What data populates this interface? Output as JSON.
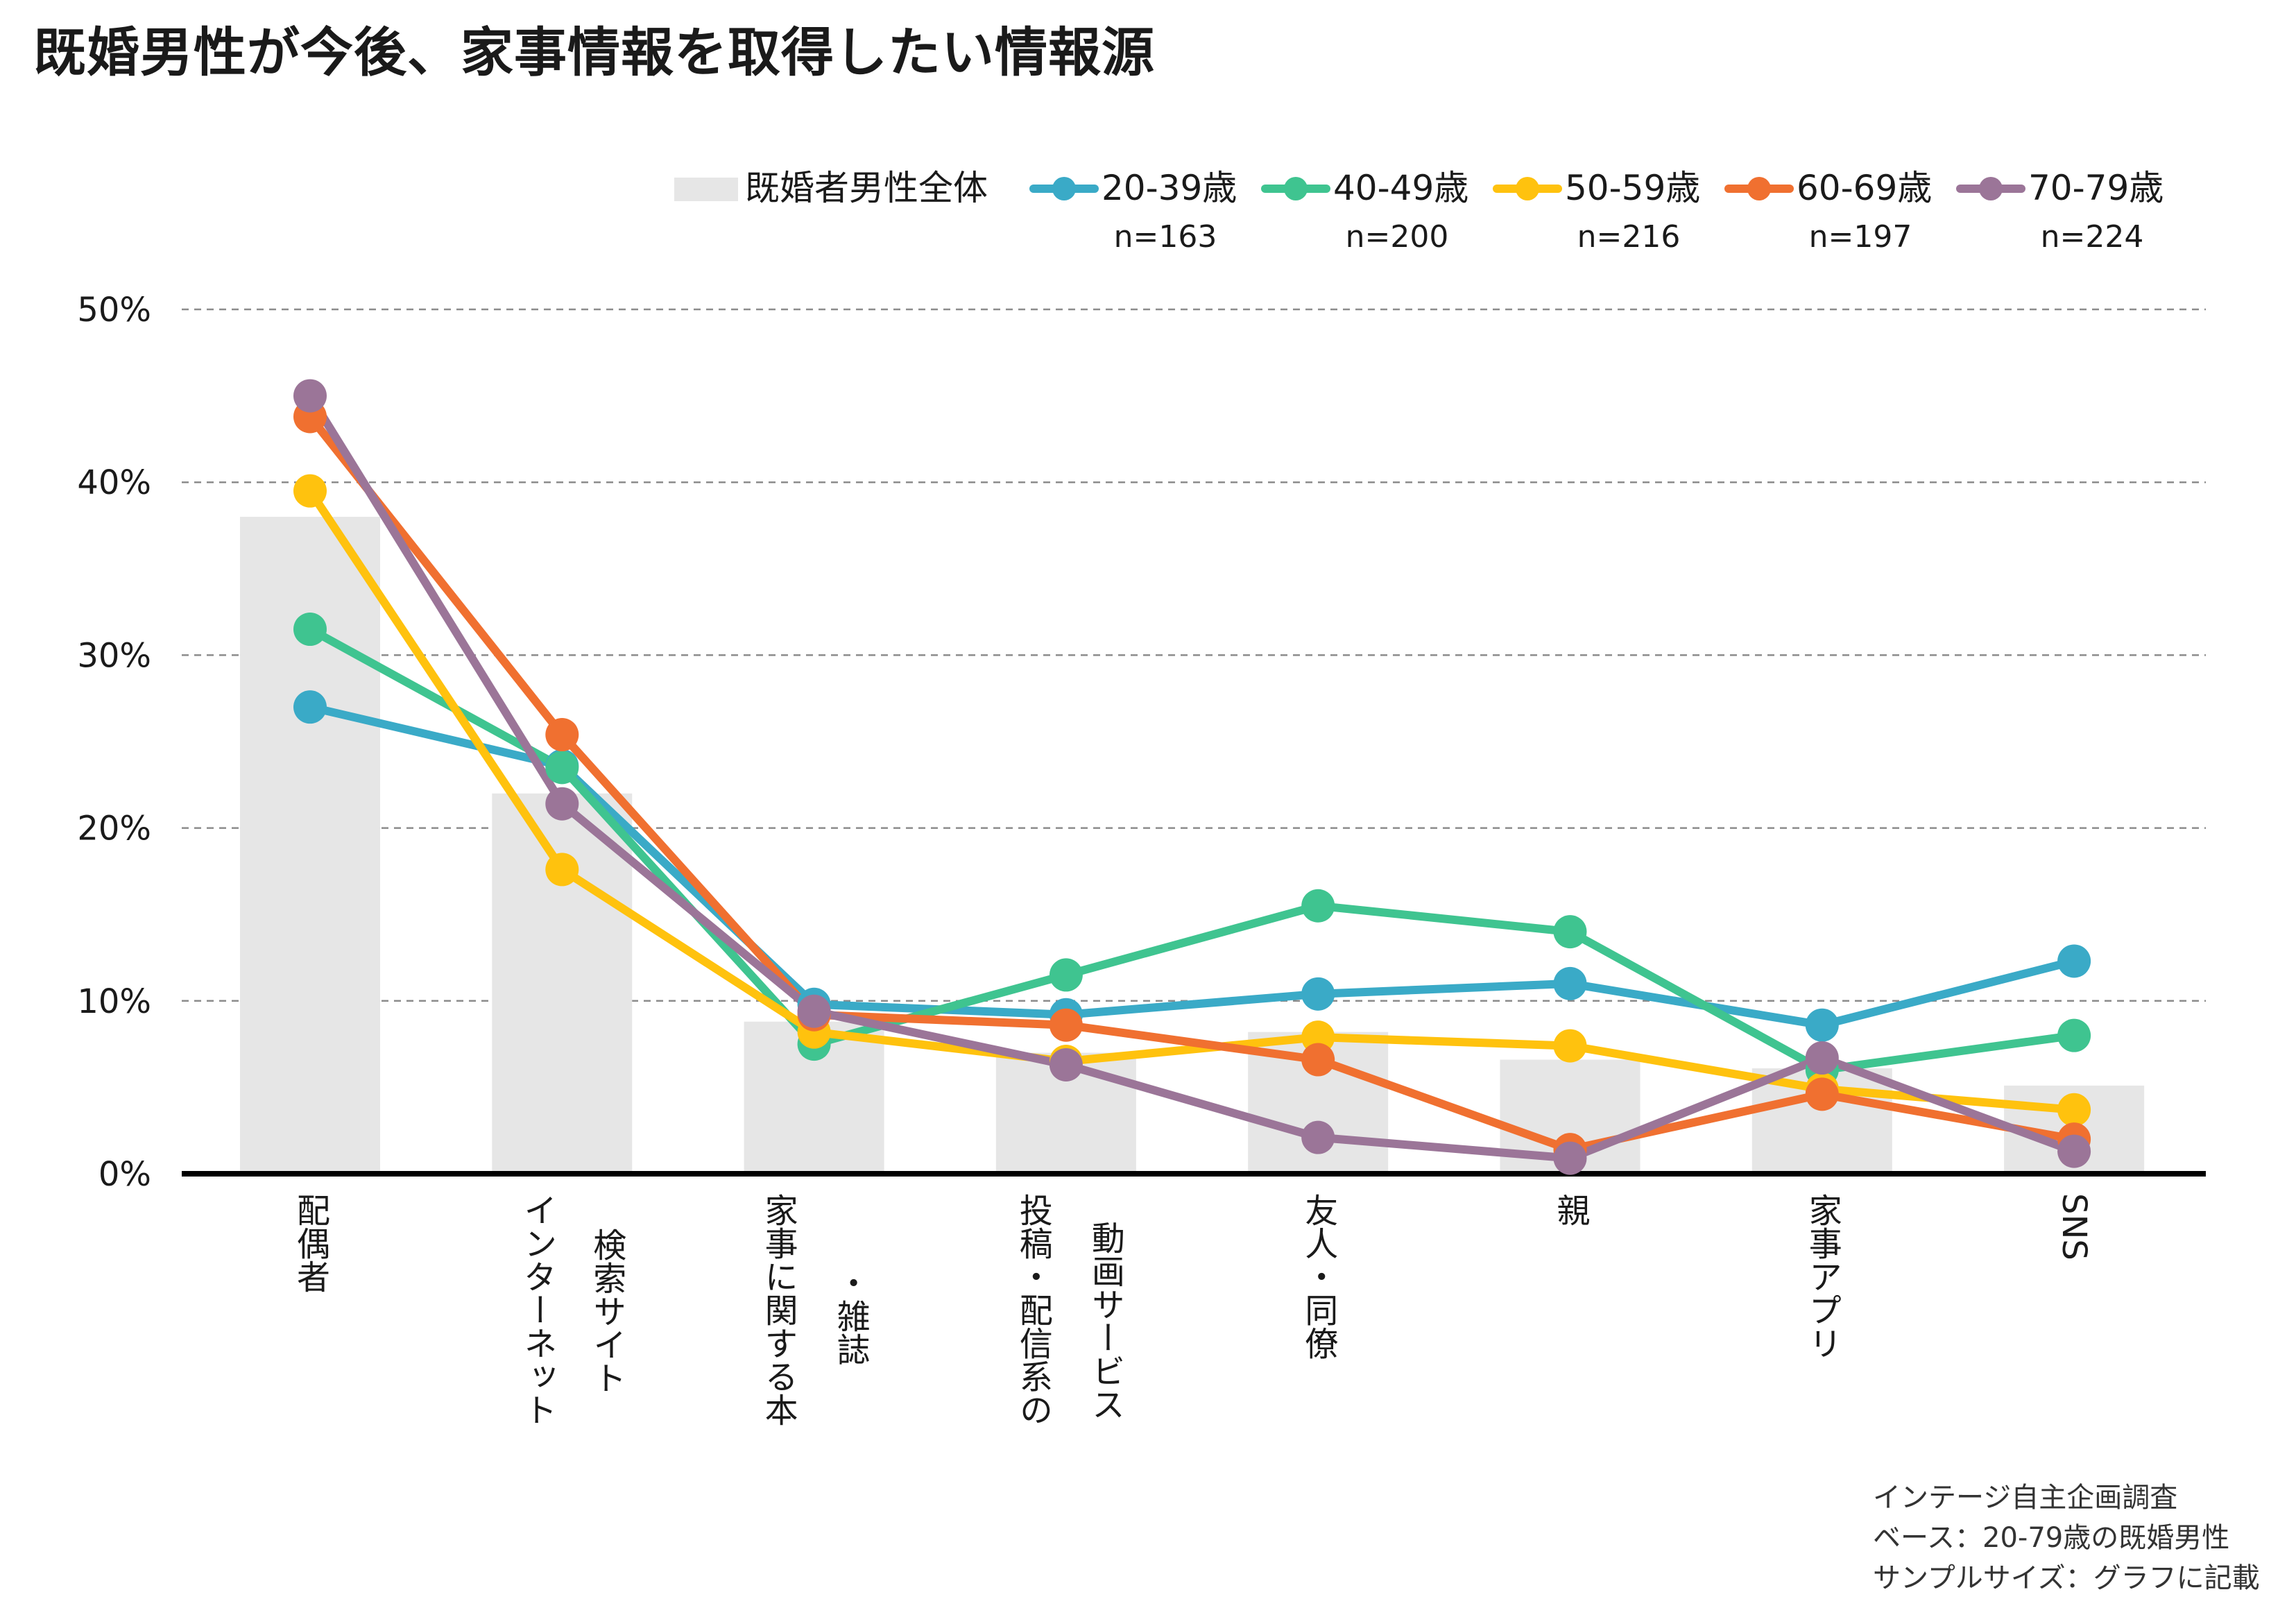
{
  "title": "既婚男性が今後、家事情報を取得したい情報源",
  "source_lines": [
    "インテージ自主企画調査",
    "ベース：20-79歳の既婚男性",
    "サンプルサイズ：グラフに記載"
  ],
  "chart_data": {
    "type": "bar+line",
    "categories": [
      [
        "配偶者"
      ],
      [
        "インターネット",
        "検索サイト"
      ],
      [
        "家事に関する本",
        "・雑誌"
      ],
      [
        "投稿・配信系の",
        "動画サービス"
      ],
      [
        "友人・同僚"
      ],
      [
        "親"
      ],
      [
        "家事アプリ"
      ],
      [
        "SNS"
      ]
    ],
    "ylim": [
      0,
      50
    ],
    "yticks": [
      "0%",
      "10%",
      "20%",
      "30%",
      "40%",
      "50%"
    ],
    "bar_series": {
      "name": "既婚者男性全体",
      "color": "#e6e6e6",
      "values": [
        38,
        22,
        8.8,
        7,
        8.2,
        6.6,
        6.1,
        5.1
      ]
    },
    "series": [
      {
        "name": "20-39歳",
        "n": "n=163",
        "color": "#3aaac7",
        "values": [
          27,
          23.6,
          9.8,
          9.2,
          10.4,
          11,
          8.6,
          12.3
        ]
      },
      {
        "name": "40-49歳",
        "n": "n=200",
        "color": "#3fc490",
        "values": [
          31.5,
          23.5,
          7.5,
          11.5,
          15.5,
          14,
          6,
          8
        ]
      },
      {
        "name": "50-59歳",
        "n": "n=216",
        "color": "#ffc20e",
        "values": [
          39.5,
          17.6,
          8.2,
          6.5,
          7.9,
          7.4,
          4.9,
          3.7
        ]
      },
      {
        "name": "60-69歳",
        "n": "n=197",
        "color": "#f07030",
        "values": [
          43.8,
          25.4,
          9.2,
          8.6,
          6.6,
          1.4,
          4.6,
          2
        ]
      },
      {
        "name": "70-79歳",
        "n": "n=224",
        "color": "#9b7598",
        "values": [
          45,
          21.4,
          9.4,
          6.3,
          2.1,
          0.9,
          6.7,
          1.3
        ]
      }
    ],
    "grid": true,
    "legend": "top"
  }
}
